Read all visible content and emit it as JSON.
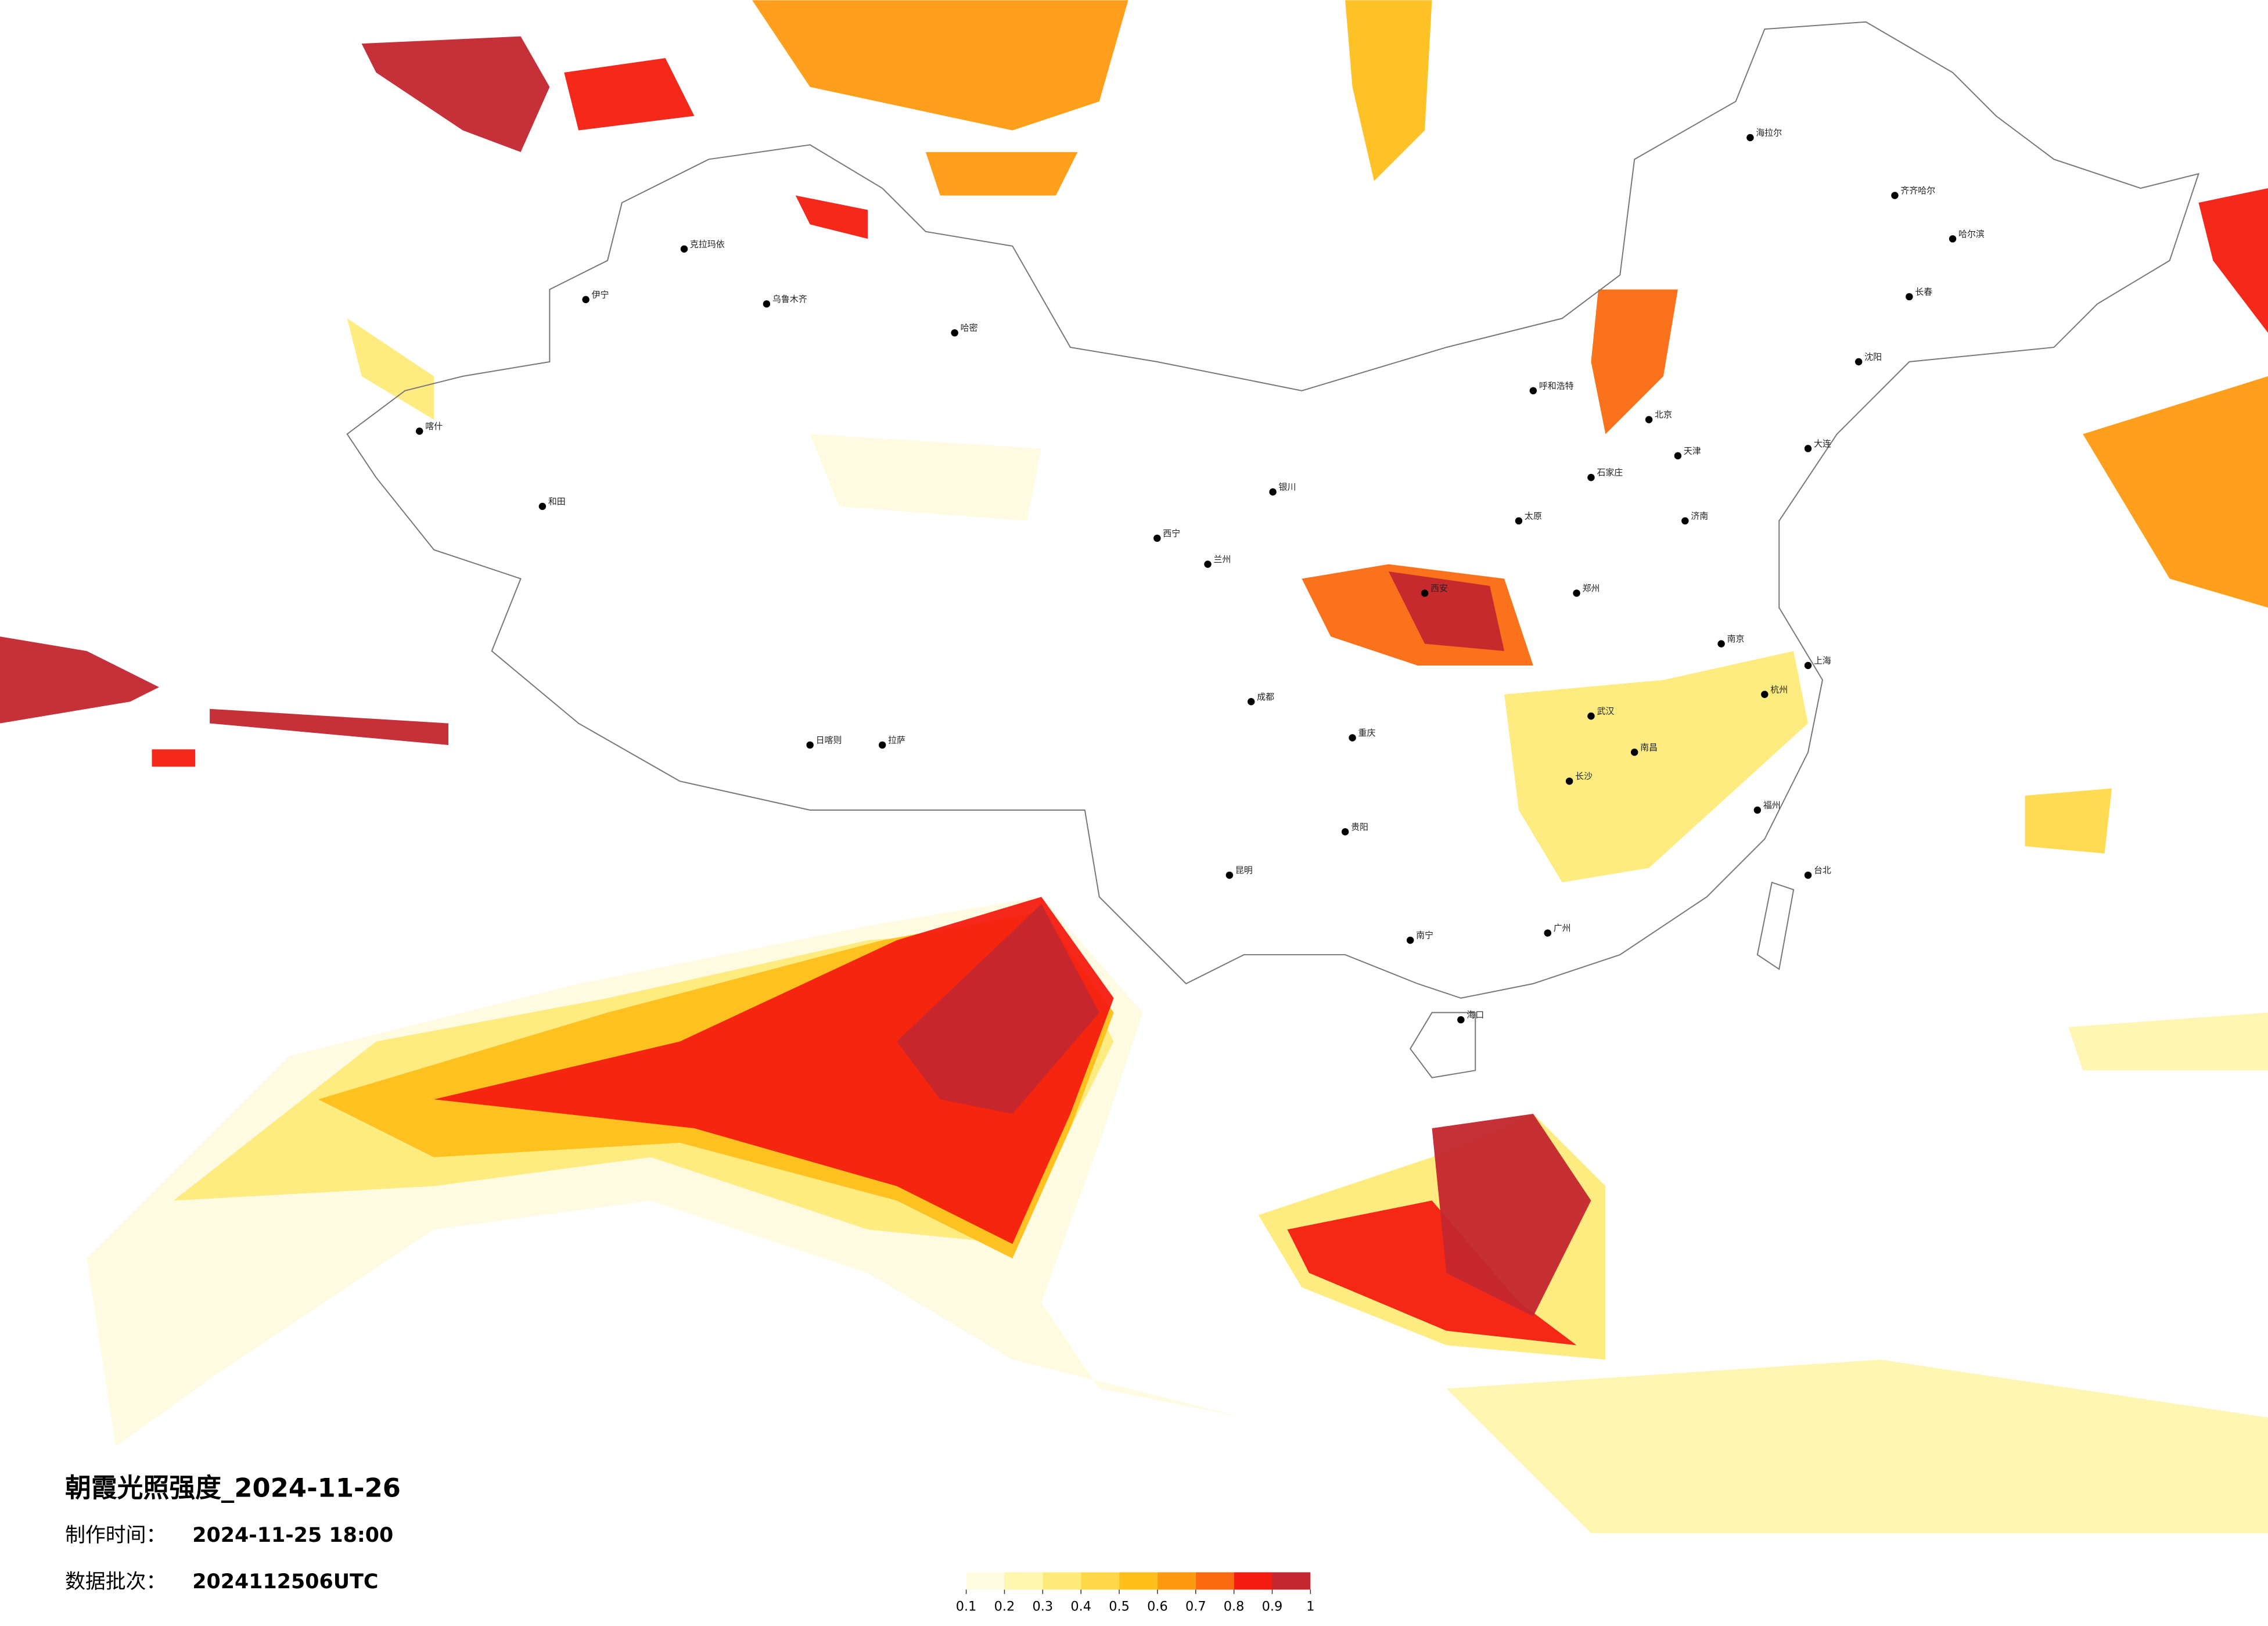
{
  "header": {
    "title": "朝霞光照强度_2024-11-26",
    "made_label": "制作时间：",
    "made_time": "2024-11-25 18:00",
    "batch_label": "数据批次：",
    "batch_value": "2024112506UTC"
  },
  "legend": {
    "ticks": [
      0.1,
      0.2,
      0.3,
      0.4,
      0.5,
      0.6,
      0.7,
      0.8,
      0.9,
      1
    ],
    "colors": [
      "#fffbe0",
      "#fff6b0",
      "#ffeb7a",
      "#ffd84a",
      "#ffbf1a",
      "#ff9a10",
      "#fb6a10",
      "#f41c10",
      "#c3262e"
    ]
  },
  "cities": [
    "克拉玛依",
    "乌鲁木齐",
    "伊宁",
    "喀什",
    "和田",
    "哈密",
    "拉萨",
    "日喀则",
    "西宁",
    "兰州",
    "银川",
    "呼和浩特",
    "北京",
    "天津",
    "石家庄",
    "太原",
    "济南",
    "郑州",
    "西安",
    "武汉",
    "成都",
    "重庆",
    "贵阳",
    "昆明",
    "南宁",
    "广州",
    "长沙",
    "南昌",
    "杭州",
    "上海",
    "南京",
    "福州",
    "台北",
    "海口",
    "哈尔滨",
    "长春",
    "沈阳",
    "大连",
    "齐齐哈尔",
    "海拉尔"
  ]
}
